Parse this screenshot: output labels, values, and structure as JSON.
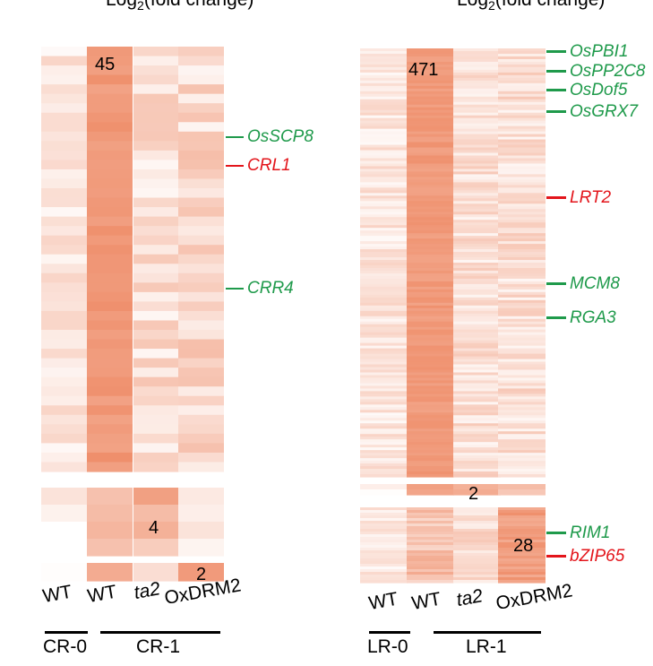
{
  "colors": {
    "red": "#e3151b",
    "green": "#1f9a4b",
    "high": "#ef8f6c",
    "low": "#ffffff"
  },
  "headers": {
    "left": "Log2(fold change)",
    "right": "Log2(fold change)"
  },
  "left_panel": {
    "counts": [
      "45",
      "4",
      "2"
    ],
    "genes": [
      {
        "label": "OsSCP8",
        "color": "green"
      },
      {
        "label": "CRL1",
        "color": "red"
      },
      {
        "label": "CRR4",
        "color": "green"
      }
    ],
    "columns": [
      "WT",
      "WT",
      "ta2",
      "OxDRM2"
    ],
    "groups": [
      "CR-0",
      "CR-1"
    ]
  },
  "right_panel": {
    "counts": [
      "471",
      "2",
      "28"
    ],
    "genes": [
      {
        "label": "OsPBI1",
        "color": "green"
      },
      {
        "label": "OsPP2C8",
        "color": "green"
      },
      {
        "label": "OsDof5",
        "color": "green"
      },
      {
        "label": "OsGRX7",
        "color": "green"
      },
      {
        "label": "LRT2",
        "color": "red"
      },
      {
        "label": "MCM8",
        "color": "green"
      },
      {
        "label": "RGA3",
        "color": "green"
      },
      {
        "label": "RIM1",
        "color": "green"
      },
      {
        "label": "bZIP65",
        "color": "red"
      }
    ],
    "columns": [
      "WT",
      "WT",
      "ta2",
      "OxDRM2"
    ],
    "groups": [
      "LR-0",
      "LR-1"
    ]
  }
}
